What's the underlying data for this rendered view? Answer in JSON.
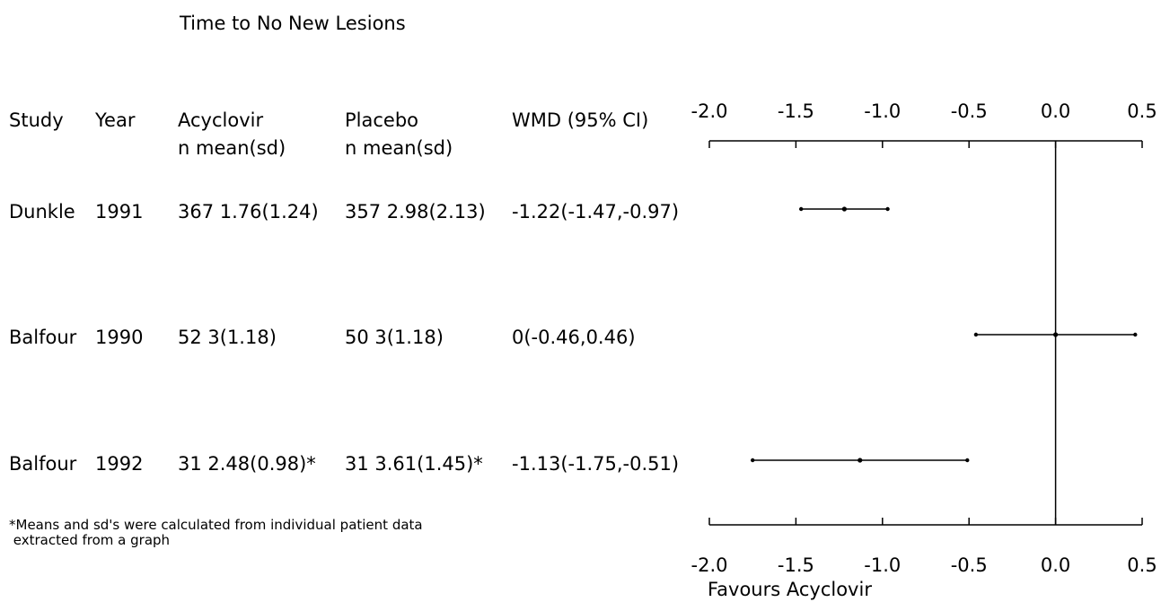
{
  "title": "Time to No New Lesions",
  "columns": {
    "study": "Study",
    "year": "Year",
    "acyclovir": [
      "Acyclovir",
      "n mean(sd)"
    ],
    "placebo": [
      "Placebo",
      "n mean(sd)"
    ],
    "wmd": "WMD (95% CI)"
  },
  "rows": [
    {
      "study": "Dunkle",
      "year": "1991",
      "acyclovir": "367 1.76(1.24)",
      "placebo": "357 2.98(2.13)",
      "wmd": "-1.22(-1.47,-0.97)"
    },
    {
      "study": "Balfour",
      "year": "1990",
      "acyclovir": "52 3(1.18)",
      "placebo": "50 3(1.18)",
      "wmd": "0(-0.46,0.46)"
    },
    {
      "study": "Balfour",
      "year": "1992",
      "acyclovir": "31 2.48(0.98)*",
      "placebo": "31 3.61(1.45)*",
      "wmd": "-1.13(-1.75,-0.51)"
    }
  ],
  "footnote": "*Means and sd's were calculated from individual patient data\n extracted from a graph",
  "chart_data": {
    "type": "scatter",
    "subtype": "forest-plot",
    "xlim": [
      -2.0,
      0.5
    ],
    "xticks": [
      "-2.0",
      "-1.5",
      "-1.0",
      "-0.5",
      "0.0",
      "0.5"
    ],
    "xtick_values": [
      -2.0,
      -1.5,
      -1.0,
      -0.5,
      0.0,
      0.5
    ],
    "reference_line": 0.0,
    "xlabel": "Favours Acyclovir",
    "points": [
      {
        "estimate": -1.22,
        "lower": -1.47,
        "upper": -0.97
      },
      {
        "estimate": 0.0,
        "lower": -0.46,
        "upper": 0.46
      },
      {
        "estimate": -1.13,
        "lower": -1.75,
        "upper": -0.51
      }
    ]
  }
}
